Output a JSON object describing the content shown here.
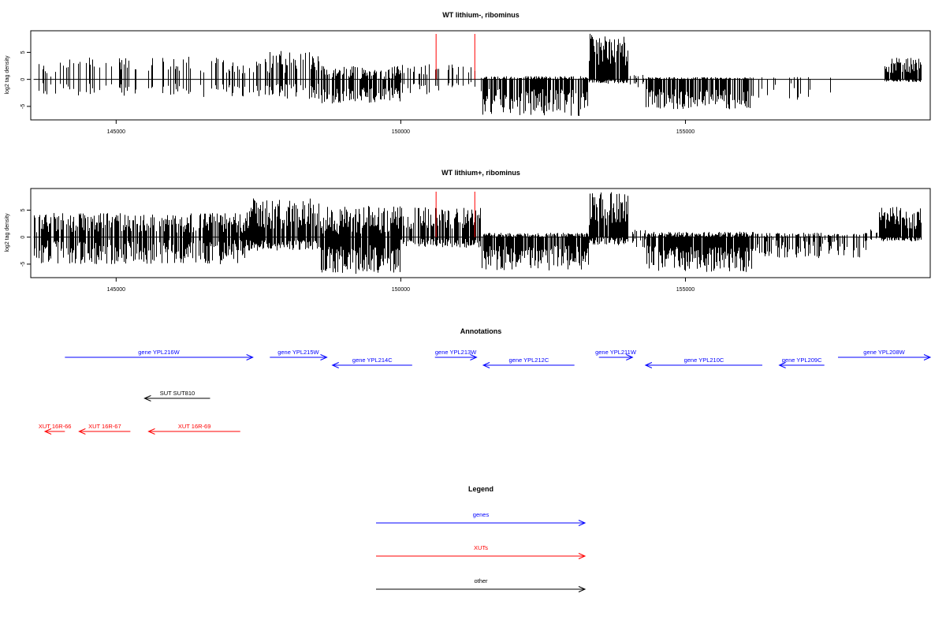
{
  "colors": {
    "gene": "#0000ff",
    "xut": "#ff0000",
    "other": "#000000",
    "marker": "#ff0000",
    "bars": "#000000"
  },
  "chart_data": [
    {
      "type": "bar",
      "title": "WT lithium-, ribominus",
      "ylabel": "log2 tag density",
      "xlim": [
        143500,
        159300
      ],
      "ylim": [
        -7.5,
        9
      ],
      "yticks": [
        5,
        0,
        -5
      ],
      "xticks": [
        145000,
        150000,
        155000
      ],
      "grid": false,
      "markers_x": [
        150620,
        151300
      ],
      "profile": [
        {
          "x0": 143550,
          "x1": 144000,
          "pos": [
            0,
            3.2
          ],
          "neg": [
            0,
            3
          ],
          "density": 0.28
        },
        {
          "x0": 144000,
          "x1": 146500,
          "pos": [
            1.5,
            4.2
          ],
          "neg": [
            0.6,
            3.2
          ],
          "density": 0.28
        },
        {
          "x0": 146500,
          "x1": 147400,
          "pos": [
            1.0,
            4.0
          ],
          "neg": [
            0.8,
            3.3
          ],
          "density": 0.25
        },
        {
          "x0": 147400,
          "x1": 148600,
          "pos": [
            1.2,
            5.5
          ],
          "neg": [
            0.8,
            3.6
          ],
          "density": 0.55
        },
        {
          "x0": 148600,
          "x1": 150000,
          "pos": [
            0,
            2.5
          ],
          "neg": [
            1.5,
            4.5
          ],
          "density": 0.7
        },
        {
          "x0": 150000,
          "x1": 150700,
          "pos": [
            0.8,
            2.8
          ],
          "neg": [
            0.5,
            3.0
          ],
          "density": 0.35
        },
        {
          "x0": 150700,
          "x1": 151400,
          "pos": [
            0.8,
            3.2
          ],
          "neg": [
            0.5,
            1.5
          ],
          "density": 0.25
        },
        {
          "x0": 151400,
          "x1": 153300,
          "pos": [
            0,
            0.6
          ],
          "neg": [
            1.8,
            6.8
          ],
          "density": 0.8
        },
        {
          "x0": 153300,
          "x1": 154000,
          "pos": [
            2.5,
            8.5
          ],
          "neg": [
            0,
            0.8
          ],
          "density": 0.95
        },
        {
          "x0": 154000,
          "x1": 154300,
          "pos": [
            0,
            1.0
          ],
          "neg": [
            0.3,
            1.5
          ],
          "density": 0.3
        },
        {
          "x0": 154300,
          "x1": 156200,
          "pos": [
            0,
            0.4
          ],
          "neg": [
            1.8,
            5.6
          ],
          "density": 0.8
        },
        {
          "x0": 156200,
          "x1": 157200,
          "pos": [
            0,
            0.5
          ],
          "neg": [
            0.5,
            3.8
          ],
          "density": 0.15
        },
        {
          "x0": 157200,
          "x1": 157800,
          "pos": [
            0,
            0.5
          ],
          "neg": [
            0.5,
            3.0
          ],
          "density": 0.08
        },
        {
          "x0": 157800,
          "x1": 158500,
          "pos": [
            0,
            0.3
          ],
          "neg": [
            0,
            0.5
          ],
          "density": 0.02
        },
        {
          "x0": 158500,
          "x1": 159150,
          "pos": [
            1.2,
            4.0
          ],
          "neg": [
            0,
            0.5
          ],
          "density": 0.95
        }
      ]
    },
    {
      "type": "bar",
      "title": "WT lithium+, ribominus",
      "ylabel": "log2 tag density",
      "xlim": [
        143500,
        159300
      ],
      "ylim": [
        -7.5,
        9
      ],
      "yticks": [
        5,
        0,
        -5
      ],
      "xticks": [
        145000,
        150000,
        155000
      ],
      "grid": false,
      "markers_x": [
        150620,
        151300
      ],
      "profile": [
        {
          "x0": 143550,
          "x1": 147300,
          "pos": [
            0.8,
            4.5
          ],
          "neg": [
            0.5,
            5.0
          ],
          "density": 0.75
        },
        {
          "x0": 147300,
          "x1": 148600,
          "pos": [
            1.5,
            7.2
          ],
          "neg": [
            0.5,
            2.5
          ],
          "density": 0.9
        },
        {
          "x0": 148600,
          "x1": 150000,
          "pos": [
            0.5,
            5.8
          ],
          "neg": [
            1.5,
            6.8
          ],
          "density": 0.9
        },
        {
          "x0": 150000,
          "x1": 151400,
          "pos": [
            1.5,
            5.5
          ],
          "neg": [
            0.3,
            2.0
          ],
          "density": 0.8
        },
        {
          "x0": 151400,
          "x1": 153300,
          "pos": [
            0,
            0.8
          ],
          "neg": [
            1.5,
            6.2
          ],
          "density": 0.85
        },
        {
          "x0": 153300,
          "x1": 154000,
          "pos": [
            2.0,
            8.3
          ],
          "neg": [
            0,
            1.5
          ],
          "density": 0.9
        },
        {
          "x0": 154000,
          "x1": 154300,
          "pos": [
            0,
            1.5
          ],
          "neg": [
            0.3,
            2.0
          ],
          "density": 0.35
        },
        {
          "x0": 154300,
          "x1": 156200,
          "pos": [
            0,
            1.0
          ],
          "neg": [
            1.5,
            6.5
          ],
          "density": 0.9
        },
        {
          "x0": 156200,
          "x1": 158200,
          "pos": [
            0,
            0.8
          ],
          "neg": [
            0.5,
            4.0
          ],
          "density": 0.5
        },
        {
          "x0": 158200,
          "x1": 158400,
          "pos": [
            0,
            1.5
          ],
          "neg": [
            0,
            0.5
          ],
          "density": 0.2
        },
        {
          "x0": 158400,
          "x1": 159150,
          "pos": [
            1.5,
            5.6
          ],
          "neg": [
            0,
            0.8
          ],
          "density": 0.95
        }
      ]
    }
  ],
  "annotations": {
    "title": "Annotations",
    "features": [
      {
        "label": "gene YPL216W",
        "type": "gene",
        "strand": "+",
        "start": 144100,
        "end": 147400,
        "track": 0
      },
      {
        "label": "gene YPL215W",
        "type": "gene",
        "strand": "+",
        "start": 147700,
        "end": 148700,
        "track": 0
      },
      {
        "label": "gene YPL214C",
        "type": "gene",
        "strand": "-",
        "start": 148800,
        "end": 150200,
        "track": 1
      },
      {
        "label": "gene YPL213W",
        "type": "gene",
        "strand": "+",
        "start": 150600,
        "end": 151330,
        "track": 0
      },
      {
        "label": "gene YPL212C",
        "type": "gene",
        "strand": "-",
        "start": 151450,
        "end": 153050,
        "track": 1
      },
      {
        "label": "gene YPL211W",
        "type": "gene",
        "strand": "+",
        "start": 153480,
        "end": 154070,
        "track": 0
      },
      {
        "label": "gene YPL210C",
        "type": "gene",
        "strand": "-",
        "start": 154300,
        "end": 156350,
        "track": 1
      },
      {
        "label": "gene YPL209C",
        "type": "gene",
        "strand": "-",
        "start": 156650,
        "end": 157440,
        "track": 1
      },
      {
        "label": "gene YPL208W",
        "type": "gene",
        "strand": "+",
        "start": 157680,
        "end": 159300,
        "track": 0
      },
      {
        "label": "SUT SUT810",
        "type": "other",
        "strand": "-",
        "start": 145500,
        "end": 146650,
        "track": 2
      },
      {
        "label": "XUT 16R-66",
        "type": "xut",
        "strand": "-",
        "start": 143750,
        "end": 144100,
        "track": 3
      },
      {
        "label": "XUT 16R-67",
        "type": "xut",
        "strand": "-",
        "start": 144350,
        "end": 145250,
        "track": 3
      },
      {
        "label": "XUT 16R-69",
        "type": "xut",
        "strand": "-",
        "start": 145570,
        "end": 147180,
        "track": 3
      }
    ]
  },
  "legend": {
    "title": "Legend",
    "items": [
      {
        "label": "genes",
        "type": "gene"
      },
      {
        "label": "XUTs",
        "type": "xut"
      },
      {
        "label": "other",
        "type": "other"
      }
    ]
  }
}
